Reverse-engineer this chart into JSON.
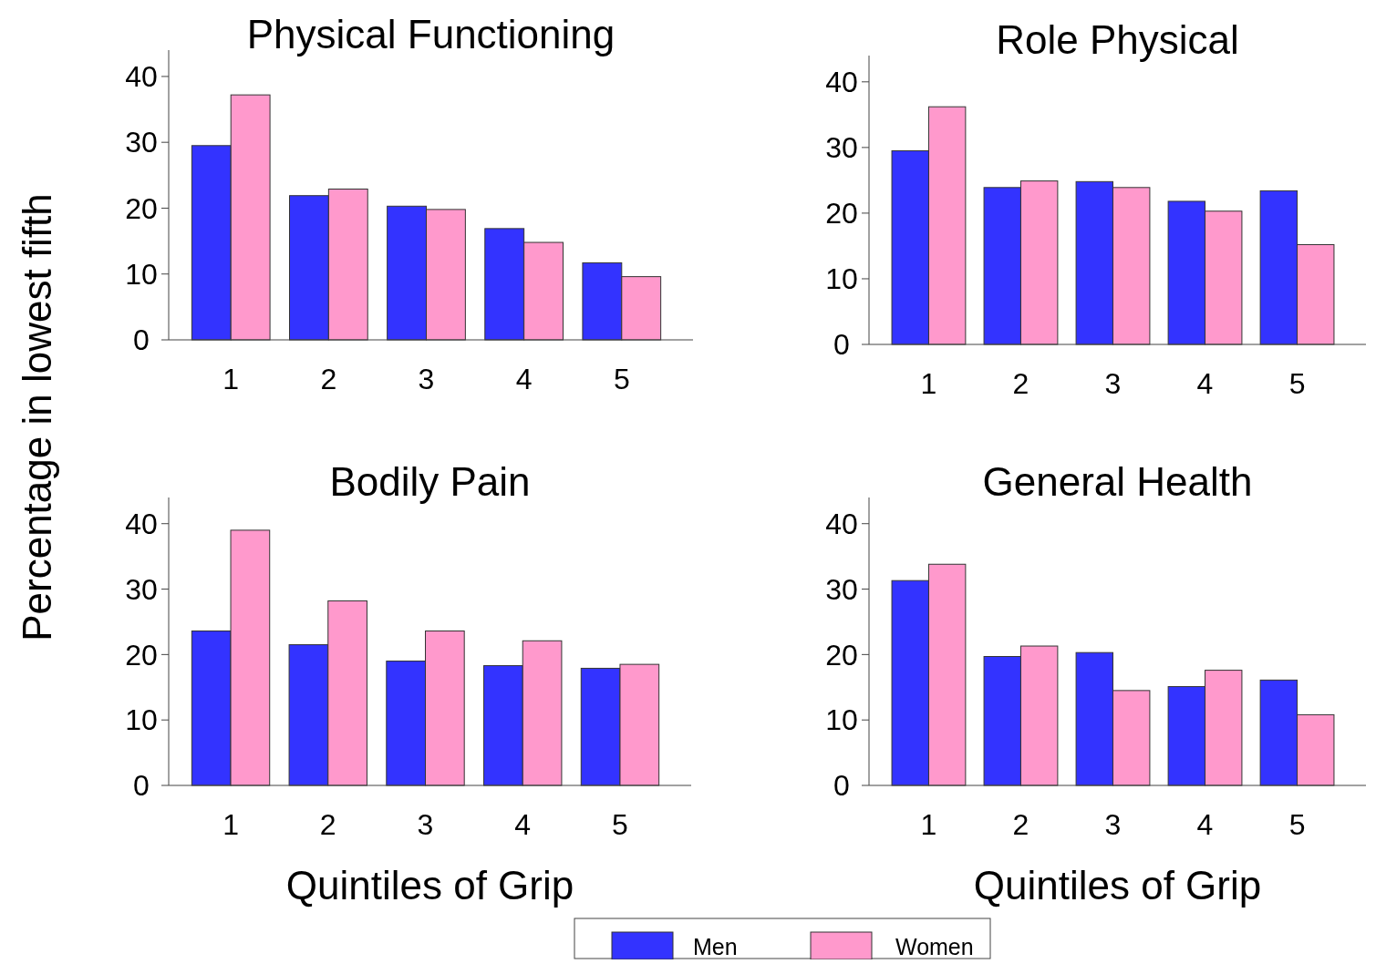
{
  "chart_data": [
    {
      "type": "bar",
      "title": "Physical Functioning",
      "ylabel": "Percentage in lowest fifth",
      "categories": [
        "1",
        "2",
        "3",
        "4",
        "5"
      ],
      "ylim": [
        0,
        44
      ],
      "yticks": [
        0,
        10,
        20,
        30,
        40
      ],
      "legend": "bottom",
      "series": [
        {
          "name": "Men",
          "color": "#3333ff",
          "values": [
            29.5,
            21.9,
            20.3,
            16.9,
            11.7
          ]
        },
        {
          "name": "Women",
          "color": "#ff99cc",
          "values": [
            37.2,
            22.9,
            19.8,
            14.8,
            9.6
          ]
        }
      ]
    },
    {
      "type": "bar",
      "title": "Role Physical",
      "categories": [
        "1",
        "2",
        "3",
        "4",
        "5"
      ],
      "ylim": [
        0,
        44
      ],
      "yticks": [
        0,
        10,
        20,
        30,
        40
      ],
      "series": [
        {
          "color": "#3333ff",
          "values": [
            29.5,
            23.9,
            24.8,
            21.8,
            23.4
          ]
        },
        {
          "color": "#ff99cc",
          "values": [
            36.2,
            24.9,
            23.9,
            20.3,
            15.2
          ]
        }
      ]
    },
    {
      "type": "bar",
      "title": "Bodily Pain",
      "xlabel": "Quintiles of Grip",
      "categories": [
        "1",
        "2",
        "3",
        "4",
        "5"
      ],
      "ylim": [
        0,
        44
      ],
      "yticks": [
        0,
        10,
        20,
        30,
        40
      ],
      "series": [
        {
          "color": "#3333ff",
          "values": [
            23.6,
            21.5,
            19.0,
            18.3,
            17.9
          ]
        },
        {
          "color": "#ff99cc",
          "values": [
            39.0,
            28.2,
            23.6,
            22.1,
            18.5
          ]
        }
      ]
    },
    {
      "type": "bar",
      "title": "General Health",
      "xlabel": "Quintiles of Grip",
      "categories": [
        "1",
        "2",
        "3",
        "4",
        "5"
      ],
      "ylim": [
        0,
        44
      ],
      "yticks": [
        0,
        10,
        20,
        30,
        40
      ],
      "series": [
        {
          "color": "#3333ff",
          "values": [
            31.3,
            19.7,
            20.3,
            15.1,
            16.1
          ]
        },
        {
          "color": "#ff99cc",
          "values": [
            33.8,
            21.3,
            14.5,
            17.6,
            10.8
          ]
        }
      ]
    }
  ]
}
